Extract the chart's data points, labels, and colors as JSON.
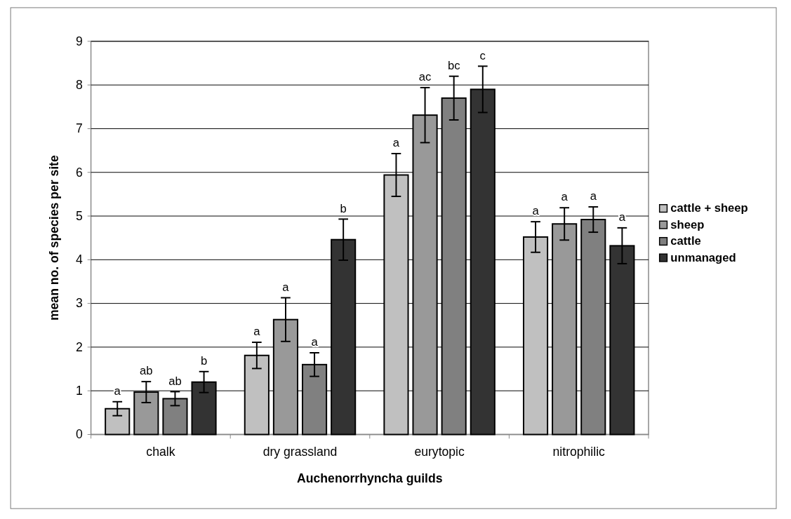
{
  "chart_data": {
    "type": "bar",
    "xlabel": "Auchenorrhyncha guilds",
    "ylabel": "mean no. of species per site",
    "categories": [
      "chalk",
      "dry grassland",
      "eurytopic",
      "nitrophilic"
    ],
    "series": [
      {
        "name": "cattle + sheep",
        "color": "#c0c0c0",
        "values": [
          0.59,
          1.81,
          5.94,
          4.52
        ],
        "errors": [
          0.16,
          0.3,
          0.49,
          0.35
        ],
        "value_labels": [
          "a",
          "a",
          "a",
          "a"
        ]
      },
      {
        "name": "sheep",
        "color": "#999999",
        "values": [
          0.97,
          2.63,
          7.31,
          4.82
        ],
        "errors": [
          0.24,
          0.5,
          0.63,
          0.37
        ],
        "value_labels": [
          "ab",
          "a",
          "ac",
          "a"
        ]
      },
      {
        "name": "cattle",
        "color": "#808080",
        "values": [
          0.82,
          1.6,
          7.7,
          4.92
        ],
        "errors": [
          0.16,
          0.27,
          0.5,
          0.29
        ],
        "value_labels": [
          "ab",
          "a",
          "bc",
          "a"
        ]
      },
      {
        "name": "unmanaged",
        "color": "#333333",
        "values": [
          1.2,
          4.46,
          7.9,
          4.32
        ],
        "errors": [
          0.24,
          0.47,
          0.53,
          0.41
        ],
        "value_labels": [
          "b",
          "b",
          "c",
          "a"
        ]
      }
    ],
    "ylim": [
      0,
      9
    ],
    "yticks": [
      0,
      1,
      2,
      3,
      4,
      5,
      6,
      7,
      8,
      9
    ],
    "grid": "y",
    "legend": "right"
  }
}
